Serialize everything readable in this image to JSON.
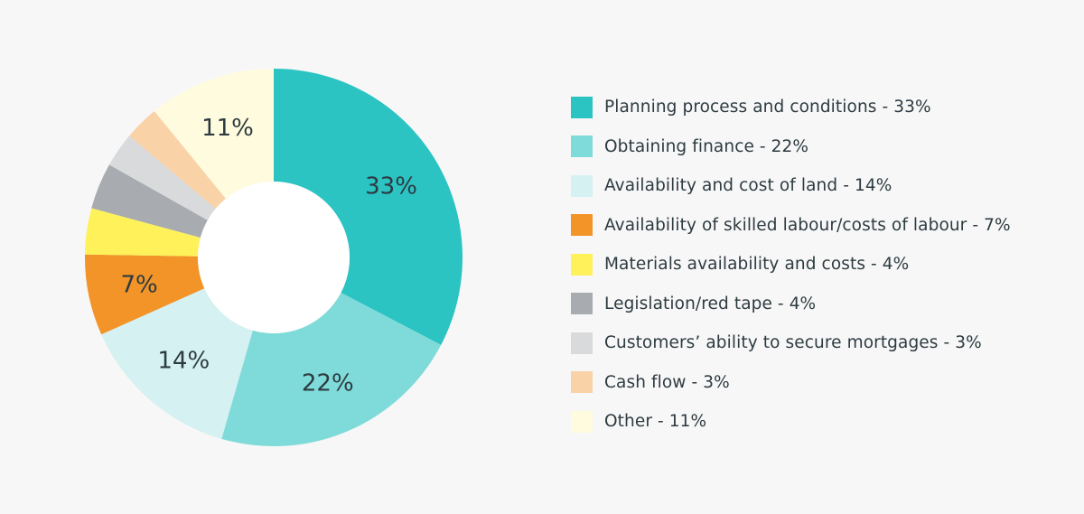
{
  "chart_data": {
    "type": "pie",
    "donut": true,
    "start": "12 o'clock",
    "direction": "clockwise",
    "slices": [
      {
        "name": "Planning process and conditions",
        "value": 33,
        "color": "#2cc3c3",
        "label": "33%",
        "legend": "Planning process and conditions - 33%"
      },
      {
        "name": "Obtaining finance",
        "value": 22,
        "color": "#7fdbd9",
        "label": "22%",
        "legend": "Obtaining finance - 22%"
      },
      {
        "name": "Availability and cost of land",
        "value": 14,
        "color": "#d5f1f1",
        "label": "14%",
        "legend": "Availability and cost of land - 14%"
      },
      {
        "name": "Availability of skilled labour/costs of labour",
        "value": 7,
        "color": "#f29427",
        "label": "7%",
        "legend": "Availability of skilled labour/costs of labour - 7%"
      },
      {
        "name": "Materials availability and costs",
        "value": 4,
        "color": "#fef159",
        "label": "",
        "legend": "Materials availability and costs - 4%"
      },
      {
        "name": "Legislation/red tape",
        "value": 4,
        "color": "#a8abaf",
        "label": "",
        "legend": "Legislation/red tape - 4%"
      },
      {
        "name": "Customers' ability to secure mortgages",
        "value": 3,
        "color": "#d9dadb",
        "label": "",
        "legend": "Customers’ ability to secure mortgages - 3%"
      },
      {
        "name": "Cash flow",
        "value": 3,
        "color": "#fad2a7",
        "label": "",
        "legend": "Cash flow - 3%"
      },
      {
        "name": "Other",
        "value": 11,
        "color": "#fffbde",
        "label": "11%",
        "legend": "Other - 11%"
      }
    ]
  }
}
